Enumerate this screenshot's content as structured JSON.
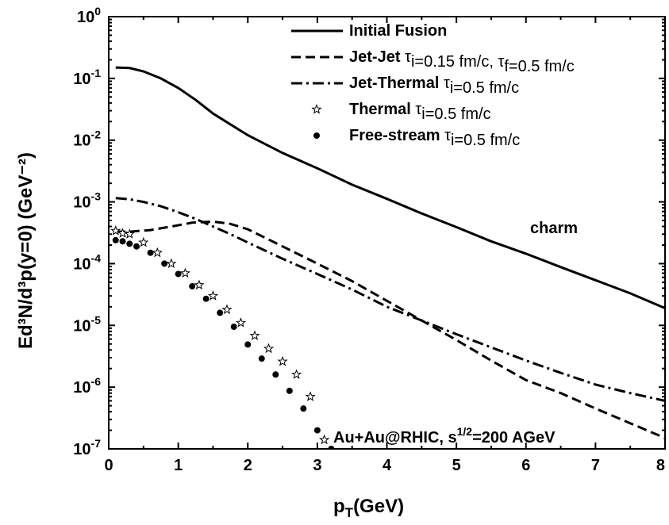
{
  "chart_data": {
    "type": "line",
    "xlabel": "p",
    "xlabel_sub": "T",
    "xlabel_tail": "(GeV)",
    "ylabel": "Ed³N/d³p(y=0) (GeV⁻²)",
    "xlim": [
      0,
      8
    ],
    "ylim": [
      1e-07,
      1
    ],
    "yscale": "log",
    "x_ticks": [
      "0",
      "1",
      "2",
      "3",
      "4",
      "5",
      "6",
      "7",
      "8"
    ],
    "y_ticks": [
      {
        "base": "10",
        "exp": "-7"
      },
      {
        "base": "10",
        "exp": "-6"
      },
      {
        "base": "10",
        "exp": "-5"
      },
      {
        "base": "10",
        "exp": "-4"
      },
      {
        "base": "10",
        "exp": "-3"
      },
      {
        "base": "10",
        "exp": "-2"
      },
      {
        "base": "10",
        "exp": "-1"
      },
      {
        "base": "10",
        "exp": "0"
      }
    ],
    "legend_position": "top-right",
    "legend": [
      {
        "name": "Initial Fusion",
        "rest": "",
        "marker": "solid"
      },
      {
        "name": "Jet-Jet",
        "rest": "τi=0.15 fm/c, τf=0.5 fm/c",
        "marker": "dashed"
      },
      {
        "name": "Jet-Thermal",
        "rest": "τi=0.5 fm/c",
        "marker": "dash-dot"
      },
      {
        "name": "Thermal",
        "rest": "τi=0.5 fm/c",
        "marker": "star"
      },
      {
        "name": "Free-stream",
        "rest": "τi=0.5 fm/c",
        "marker": "circle"
      }
    ],
    "annotations": {
      "charm": "charm",
      "system": "Au+Au@RHIC, s",
      "system_sup": "1/2",
      "system_tail": "=200 AGeV"
    },
    "series": [
      {
        "name": "Initial Fusion",
        "style": "solid",
        "x": [
          0.1,
          0.3,
          0.5,
          0.75,
          1.0,
          1.25,
          1.5,
          1.75,
          2.0,
          2.5,
          3.0,
          3.5,
          4.0,
          4.5,
          5.0,
          5.5,
          6.0,
          6.5,
          7.0,
          7.5,
          8.0
        ],
        "y": [
          0.15,
          0.147,
          0.13,
          0.1,
          0.07,
          0.045,
          0.027,
          0.018,
          0.012,
          0.0062,
          0.0035,
          0.0019,
          0.00112,
          0.00065,
          0.00039,
          0.00023,
          0.000145,
          8.8e-05,
          5.4e-05,
          3.3e-05,
          1.9e-05
        ]
      },
      {
        "name": "Jet-Jet",
        "style": "dashed",
        "x": [
          0.1,
          0.3,
          0.6,
          0.9,
          1.2,
          1.5,
          1.75,
          2.0,
          2.5,
          3.0,
          3.5,
          4.0,
          4.5,
          5.0,
          5.5,
          6.0,
          6.5,
          7.0,
          7.5,
          8.0
        ],
        "y": [
          0.00033,
          0.00033,
          0.00035,
          0.0004,
          0.00046,
          0.00048,
          0.00044,
          0.00036,
          0.00019,
          0.0001,
          5.2e-05,
          2.5e-05,
          1.2e-05,
          5.8e-06,
          2.7e-06,
          1.3e-06,
          8e-07,
          4.5e-07,
          2.6e-07,
          1.5e-07
        ]
      },
      {
        "name": "Jet-Thermal",
        "style": "dash-dot",
        "x": [
          0.1,
          0.3,
          0.5,
          0.75,
          1.0,
          1.25,
          1.5,
          1.75,
          2.0,
          2.5,
          3.0,
          3.5,
          4.0,
          4.5,
          5.0,
          5.5,
          6.0,
          6.5,
          7.0,
          7.5,
          8.0
        ],
        "y": [
          0.00115,
          0.0011,
          0.001,
          0.00085,
          0.00068,
          0.00053,
          0.0004,
          0.0003,
          0.00022,
          0.00012,
          6.8e-05,
          3.8e-05,
          2e-05,
          1.2e-05,
          7.2e-06,
          4.4e-06,
          2.7e-06,
          1.7e-06,
          1.1e-06,
          8e-07,
          6e-07
        ]
      },
      {
        "name": "Thermal",
        "style": "star",
        "x": [
          0.1,
          0.2,
          0.3,
          0.5,
          0.7,
          0.9,
          1.1,
          1.3,
          1.5,
          1.7,
          1.9,
          2.1,
          2.3,
          2.5,
          2.7,
          2.9,
          3.1
        ],
        "y": [
          0.00034,
          0.00031,
          0.0003,
          0.00022,
          0.00015,
          0.0001,
          7e-05,
          4.5e-05,
          3e-05,
          1.8e-05,
          1.1e-05,
          6.8e-06,
          4.2e-06,
          2.6e-06,
          1.6e-06,
          7e-07,
          1.4e-07
        ]
      },
      {
        "name": "Free-stream",
        "style": "circle",
        "x": [
          0.1,
          0.2,
          0.3,
          0.4,
          0.6,
          0.8,
          1.0,
          1.2,
          1.4,
          1.6,
          1.8,
          2.0,
          2.2,
          2.4,
          2.6,
          2.8,
          3.0,
          3.2
        ],
        "y": [
          0.00024,
          0.00023,
          0.00021,
          0.00019,
          0.00015,
          0.0001,
          6.8e-05,
          4.3e-05,
          2.7e-05,
          1.6e-05,
          9.5e-06,
          4.9e-06,
          2.9e-06,
          1.6e-06,
          8.7e-07,
          4.5e-07,
          2e-07,
          1e-07
        ]
      }
    ]
  }
}
